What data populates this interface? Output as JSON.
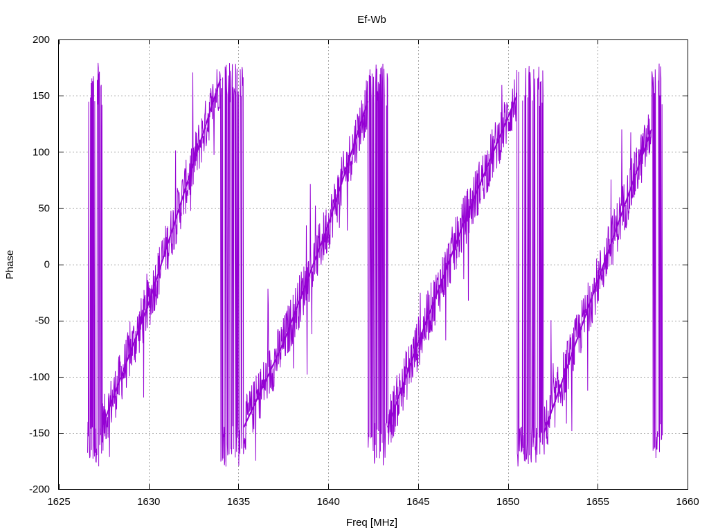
{
  "chart_data": {
    "type": "line",
    "title": "Ef-Wb",
    "xlabel": "Freq [MHz]",
    "ylabel": "Phase",
    "xlim": [
      1625,
      1660
    ],
    "ylim": [
      -200,
      200
    ],
    "xticks": [
      1625,
      1630,
      1635,
      1640,
      1645,
      1650,
      1655,
      1660
    ],
    "yticks": [
      -200,
      -150,
      -100,
      -50,
      0,
      50,
      100,
      150,
      200
    ],
    "grid": true,
    "legend": "none",
    "color": "#9400d3",
    "data_range_x": [
      1626.6,
      1658.6
    ],
    "phase_wrap_centers_mhz": [
      1627.0,
      1634.6,
      1642.6,
      1651.2,
      1658.3
    ],
    "wrap_limits": [
      -180,
      180
    ],
    "segments": [
      {
        "x": [
          1627.4,
          1630,
          1632,
          1634.0
        ],
        "y": [
          -145,
          -35,
          65,
          165
        ]
      },
      {
        "x": [
          1635.3,
          1637.5,
          1640,
          1642.2
        ],
        "y": [
          -145,
          -70,
          35,
          145
        ]
      },
      {
        "x": [
          1643.3,
          1645,
          1647.5,
          1650.5
        ],
        "y": [
          -145,
          -70,
          35,
          150
        ]
      },
      {
        "x": [
          1652.0,
          1654,
          1656,
          1658.0
        ],
        "y": [
          -150,
          -60,
          30,
          120
        ]
      }
    ],
    "noise_amplitude_deg": 15
  }
}
